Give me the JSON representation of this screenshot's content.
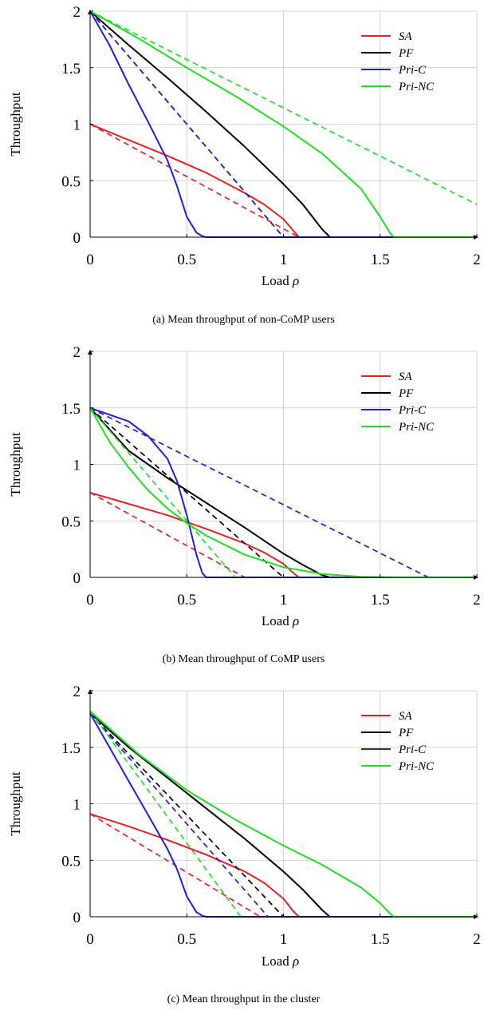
{
  "chart_data": [
    {
      "id": "a",
      "type": "line",
      "caption": "(a) Mean throughput of non-CoMP users",
      "xlabel": "Load",
      "xlabel_symbol": "ρ",
      "ylabel": "Throughput",
      "xlim": [
        0,
        2
      ],
      "ylim": [
        0,
        2
      ],
      "xticks": [
        0,
        0.5,
        1,
        1.5,
        2
      ],
      "yticks": [
        0,
        0.5,
        1,
        1.5,
        2
      ],
      "xtick_labels": [
        "0",
        "0.5",
        "1",
        "1.5",
        "2"
      ],
      "ytick_labels": [
        "0",
        "0.5",
        "1",
        "1.5",
        "2"
      ],
      "grid": true,
      "legend_position": "top-right",
      "legend": [
        "SA",
        "PF",
        "Pri-C",
        "Pri-NC"
      ],
      "series": [
        {
          "name": "SA",
          "color": "#e8201e",
          "style": "solid",
          "x": [
            0,
            0.2,
            0.4,
            0.6,
            0.8,
            0.9,
            1.0,
            1.05,
            1.08,
            2.0
          ],
          "y": [
            1.0,
            0.86,
            0.72,
            0.57,
            0.39,
            0.29,
            0.16,
            0.06,
            0,
            0
          ]
        },
        {
          "name": "SA",
          "color": "#e8201e",
          "style": "dashed",
          "x": [
            0,
            1.08
          ],
          "y": [
            1.0,
            0
          ]
        },
        {
          "name": "PF",
          "color": "#000000",
          "style": "solid",
          "x": [
            0,
            0.2,
            0.4,
            0.6,
            0.8,
            1.0,
            1.1,
            1.2,
            1.24,
            2.0
          ],
          "y": [
            2.0,
            1.7,
            1.41,
            1.11,
            0.8,
            0.47,
            0.29,
            0.07,
            0,
            0
          ]
        },
        {
          "name": "PF",
          "color": "#000000",
          "style": "dashed",
          "x": [
            0,
            1.0
          ],
          "y": [
            2.0,
            0
          ]
        },
        {
          "name": "Pri-C",
          "color": "#1f1fd6",
          "style": "solid",
          "x": [
            0,
            0.1,
            0.2,
            0.3,
            0.4,
            0.45,
            0.5,
            0.55,
            0.58,
            0.6,
            2.0
          ],
          "y": [
            2.0,
            1.7,
            1.35,
            1.02,
            0.68,
            0.45,
            0.18,
            0.04,
            0.01,
            0,
            0
          ]
        },
        {
          "name": "Pri-C",
          "color": "#1f1fd6",
          "style": "dashed",
          "x": [
            0,
            1.0
          ],
          "y": [
            2.0,
            0
          ]
        },
        {
          "name": "Pri-NC",
          "color": "#1ee01e",
          "style": "solid",
          "x": [
            0,
            0.25,
            0.5,
            0.75,
            1.0,
            1.2,
            1.4,
            1.5,
            1.55,
            1.57,
            2.0
          ],
          "y": [
            2.0,
            1.76,
            1.5,
            1.25,
            0.98,
            0.74,
            0.43,
            0.18,
            0.04,
            0,
            0
          ]
        },
        {
          "name": "Pri-NC",
          "color": "#1ee01e",
          "style": "dashed",
          "x": [
            0,
            2.0
          ],
          "y": [
            2.0,
            0.29
          ]
        }
      ]
    },
    {
      "id": "b",
      "type": "line",
      "caption": "(b) Mean throughput of CoMP users",
      "xlabel": "Load",
      "xlabel_symbol": "ρ",
      "ylabel": "Throughput",
      "xlim": [
        0,
        2
      ],
      "ylim": [
        0,
        2
      ],
      "xticks": [
        0,
        0.5,
        1,
        1.5,
        2
      ],
      "yticks": [
        0,
        0.5,
        1,
        1.5,
        2
      ],
      "xtick_labels": [
        "0",
        "0.5",
        "1",
        "1.5",
        "2"
      ],
      "ytick_labels": [
        "0",
        "0.5",
        "1",
        "1.5",
        "2"
      ],
      "grid": true,
      "legend_position": "top-right",
      "legend": [
        "SA",
        "PF",
        "Pri-C",
        "Pri-NC"
      ],
      "series": [
        {
          "name": "SA",
          "color": "#e8201e",
          "style": "solid",
          "x": [
            0,
            0.2,
            0.4,
            0.6,
            0.8,
            0.9,
            1.0,
            1.05,
            1.08,
            2.0
          ],
          "y": [
            0.75,
            0.65,
            0.55,
            0.43,
            0.3,
            0.22,
            0.12,
            0.04,
            0,
            0
          ]
        },
        {
          "name": "SA",
          "color": "#e8201e",
          "style": "dashed",
          "x": [
            0,
            0.8
          ],
          "y": [
            0.75,
            0
          ]
        },
        {
          "name": "PF",
          "color": "#000000",
          "style": "solid",
          "x": [
            0,
            0.2,
            0.4,
            0.6,
            0.8,
            1.0,
            1.1,
            1.2,
            1.24,
            2.0
          ],
          "y": [
            1.5,
            1.12,
            0.88,
            0.66,
            0.44,
            0.21,
            0.11,
            0.02,
            0,
            0
          ]
        },
        {
          "name": "PF",
          "color": "#000000",
          "style": "dashed",
          "x": [
            0,
            1.0
          ],
          "y": [
            1.5,
            0
          ]
        },
        {
          "name": "Pri-C",
          "color": "#1f1fd6",
          "style": "solid",
          "x": [
            0,
            0.2,
            0.3,
            0.4,
            0.45,
            0.5,
            0.55,
            0.58,
            0.6,
            2.0
          ],
          "y": [
            1.5,
            1.38,
            1.25,
            1.05,
            0.85,
            0.55,
            0.2,
            0.04,
            0,
            0
          ]
        },
        {
          "name": "Pri-C",
          "color": "#1f1fd6",
          "style": "dashed",
          "x": [
            0,
            1.75
          ],
          "y": [
            1.5,
            0
          ]
        },
        {
          "name": "Pri-NC",
          "color": "#1ee01e",
          "style": "solid",
          "x": [
            0,
            0.1,
            0.2,
            0.3,
            0.4,
            0.5,
            0.6,
            0.8,
            1.0,
            1.2,
            1.4,
            1.6,
            2.0
          ],
          "y": [
            1.5,
            1.2,
            0.97,
            0.77,
            0.61,
            0.48,
            0.37,
            0.2,
            0.09,
            0.03,
            0.005,
            0,
            0
          ]
        },
        {
          "name": "Pri-NC",
          "color": "#1ee01e",
          "style": "dashed",
          "x": [
            0,
            0.75
          ],
          "y": [
            1.5,
            0
          ]
        }
      ]
    },
    {
      "id": "c",
      "type": "line",
      "caption": "(c) Mean throughput in the cluster",
      "xlabel": "Load",
      "xlabel_symbol": "ρ",
      "ylabel": "Throughput",
      "xlim": [
        0,
        2
      ],
      "ylim": [
        0,
        2
      ],
      "xticks": [
        0,
        0.5,
        1,
        1.5,
        2
      ],
      "yticks": [
        0,
        0.5,
        1,
        1.5,
        2
      ],
      "xtick_labels": [
        "0",
        "0.5",
        "1",
        "1.5",
        "2"
      ],
      "ytick_labels": [
        "0",
        "0.5",
        "1",
        "1.5",
        "2"
      ],
      "grid": true,
      "legend_position": "top-right",
      "legend": [
        "SA",
        "PF",
        "Pri-C",
        "Pri-NC"
      ],
      "series": [
        {
          "name": "SA",
          "color": "#e8201e",
          "style": "solid",
          "x": [
            0,
            0.2,
            0.4,
            0.6,
            0.8,
            0.9,
            1.0,
            1.05,
            1.08,
            2.0
          ],
          "y": [
            0.91,
            0.8,
            0.68,
            0.55,
            0.4,
            0.3,
            0.16,
            0.05,
            0,
            0
          ]
        },
        {
          "name": "SA",
          "color": "#e8201e",
          "style": "dashed",
          "x": [
            0,
            0.88
          ],
          "y": [
            0.91,
            0
          ]
        },
        {
          "name": "PF",
          "color": "#000000",
          "style": "solid",
          "x": [
            0,
            0.2,
            0.4,
            0.6,
            0.8,
            1.0,
            1.1,
            1.2,
            1.24,
            2.0
          ],
          "y": [
            1.8,
            1.5,
            1.23,
            0.96,
            0.69,
            0.4,
            0.24,
            0.06,
            0,
            0
          ]
        },
        {
          "name": "PF",
          "color": "#000000",
          "style": "dashed",
          "x": [
            0,
            1.0
          ],
          "y": [
            1.8,
            0
          ]
        },
        {
          "name": "Pri-C",
          "color": "#1f1fd6",
          "style": "solid",
          "x": [
            0,
            0.1,
            0.2,
            0.3,
            0.4,
            0.45,
            0.5,
            0.55,
            0.58,
            0.6,
            2.0
          ],
          "y": [
            1.8,
            1.5,
            1.2,
            0.9,
            0.6,
            0.42,
            0.18,
            0.04,
            0.01,
            0,
            0
          ]
        },
        {
          "name": "Pri-C",
          "color": "#1f1fd6",
          "style": "dashed",
          "x": [
            0,
            0.92
          ],
          "y": [
            1.8,
            0
          ]
        },
        {
          "name": "Pri-NC",
          "color": "#1ee01e",
          "style": "solid",
          "x": [
            0,
            0.25,
            0.5,
            0.75,
            1.0,
            1.2,
            1.4,
            1.5,
            1.55,
            1.57,
            2.0
          ],
          "y": [
            1.82,
            1.44,
            1.12,
            0.86,
            0.63,
            0.46,
            0.26,
            0.12,
            0.03,
            0,
            0
          ]
        },
        {
          "name": "Pri-NC",
          "color": "#1ee01e",
          "style": "dashed",
          "x": [
            0,
            0.78
          ],
          "y": [
            1.82,
            0
          ]
        }
      ]
    }
  ]
}
